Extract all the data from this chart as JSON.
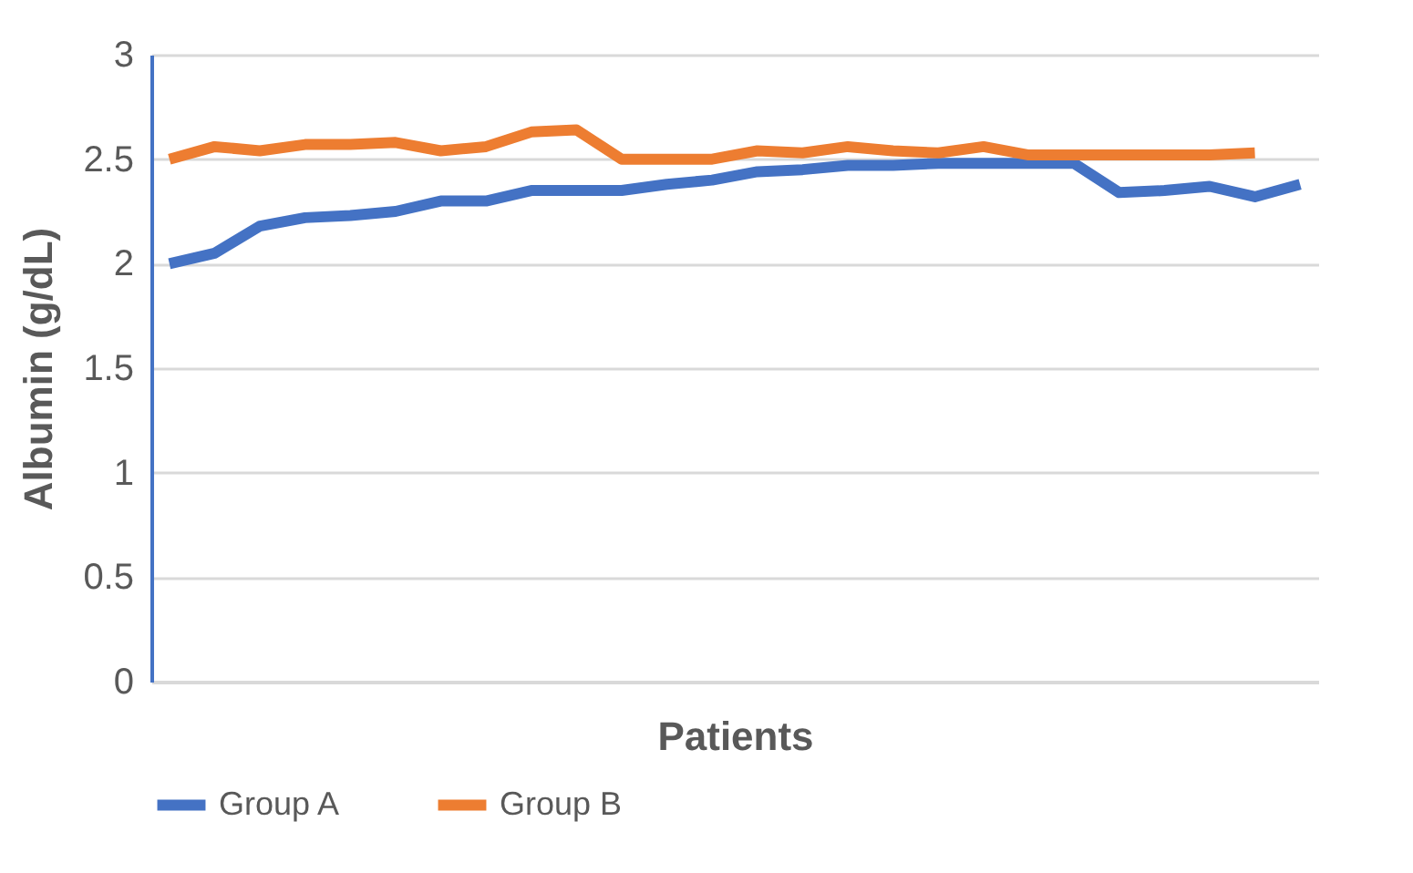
{
  "chart_data": {
    "type": "line",
    "xlabel": "Patients",
    "ylabel": "Albumin (g/dL)",
    "categories": [
      null,
      null,
      null,
      null,
      null,
      null,
      null,
      null,
      null,
      null,
      null,
      null,
      null,
      null,
      null,
      null,
      null,
      null,
      null,
      null,
      null,
      null,
      null,
      null,
      null,
      null
    ],
    "ylim": [
      0,
      3
    ],
    "yticks": [
      0,
      0.5,
      1,
      1.5,
      2,
      2.5,
      3
    ],
    "grid": "y",
    "legend": "bottom",
    "tick_labels": "y",
    "marker": "none",
    "series": [
      {
        "name": "Group A",
        "color": "#4472c4",
        "values": [
          2.0,
          2.05,
          2.18,
          2.22,
          2.23,
          2.25,
          2.3,
          2.3,
          2.35,
          2.35,
          2.35,
          2.38,
          2.4,
          2.44,
          2.45,
          2.47,
          2.47,
          2.48,
          2.48,
          2.48,
          2.48,
          2.34,
          2.35,
          2.37,
          2.32,
          2.38
        ]
      },
      {
        "name": "Group B",
        "color": "#ed7d31",
        "values": [
          2.5,
          2.56,
          2.54,
          2.57,
          2.57,
          2.58,
          2.54,
          2.56,
          2.63,
          2.64,
          2.5,
          2.5,
          2.5,
          2.54,
          2.53,
          2.56,
          2.54,
          2.53,
          2.56,
          2.52,
          2.52,
          2.52,
          2.52,
          2.52,
          2.53,
          null
        ]
      }
    ]
  }
}
